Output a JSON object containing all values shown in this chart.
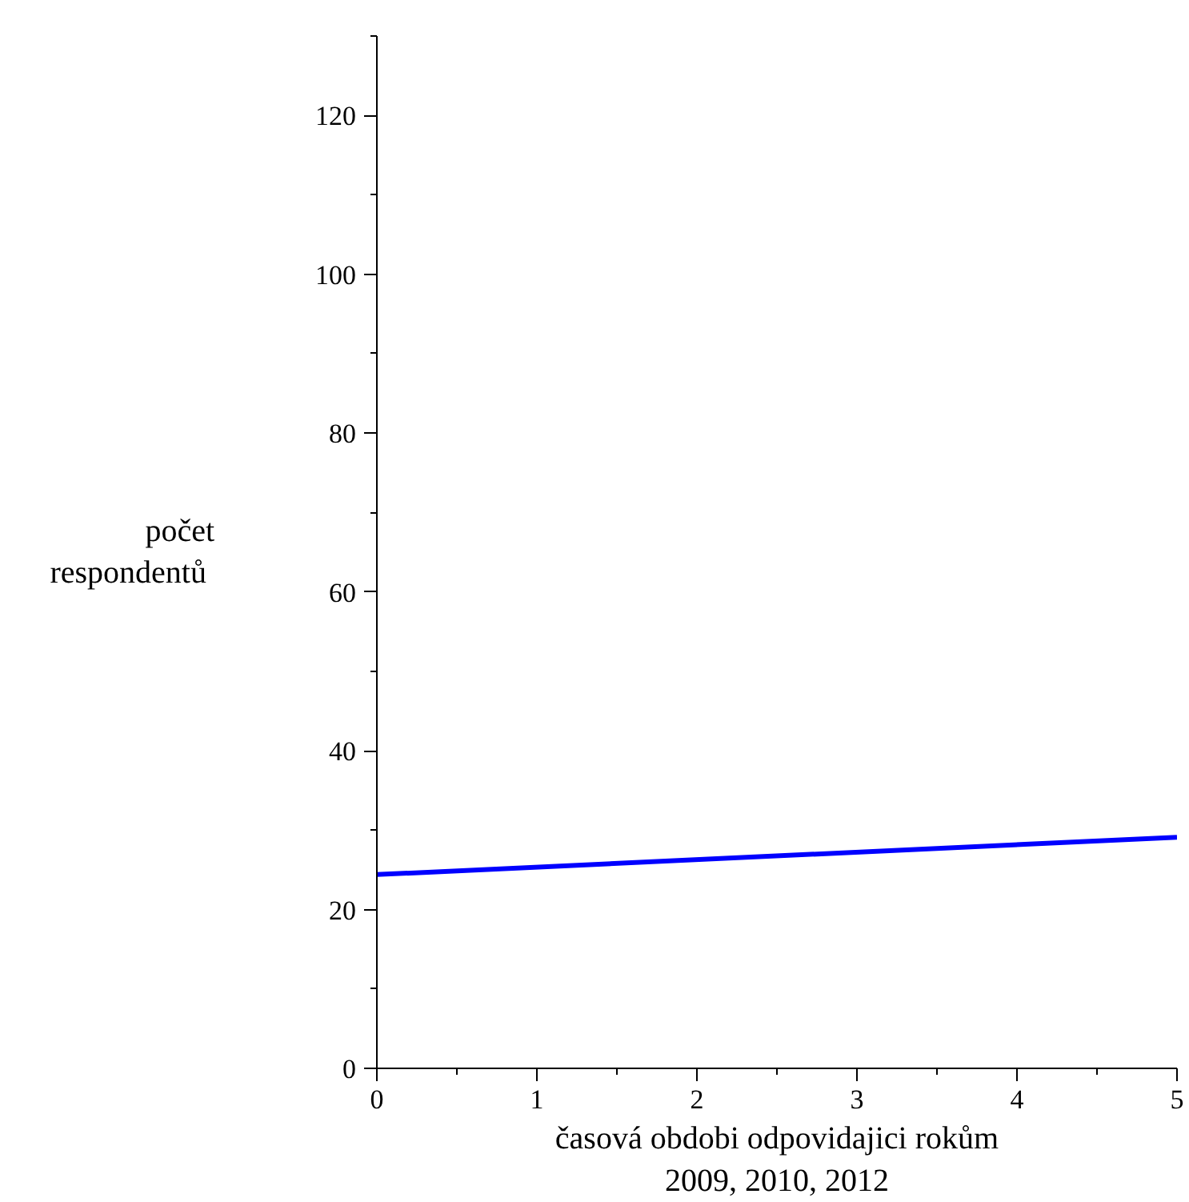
{
  "chart_data": {
    "type": "line",
    "xlabel": "časová obdobi odpovidajici rokům\n2009, 2010, 2012",
    "ylabel": "počet\n respondentů",
    "x": [
      0,
      5
    ],
    "series": [
      {
        "color": "#0000ff",
        "values": [
          24.4,
          29.1
        ]
      }
    ],
    "xlim": [
      0,
      5
    ],
    "xticks": [
      0,
      1,
      2,
      3,
      4,
      5
    ],
    "ylim": [
      0,
      130
    ],
    "yticks": [
      0,
      20,
      40,
      60,
      80,
      100,
      120
    ],
    "marker": "none",
    "line_style": "solid"
  }
}
